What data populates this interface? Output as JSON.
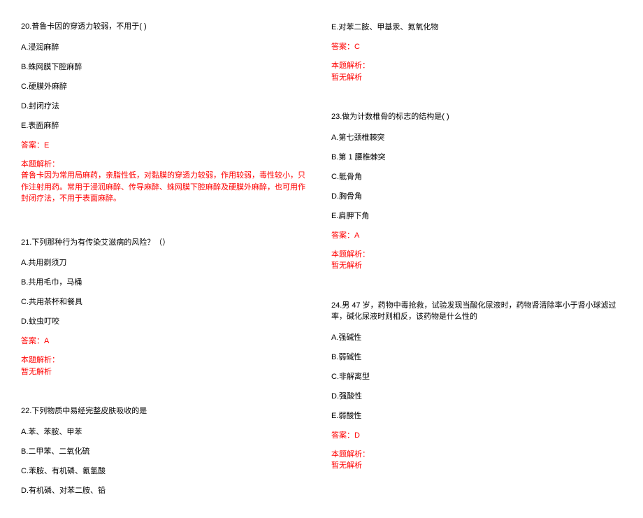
{
  "left": {
    "q20": {
      "title": "20.普鲁卡因的穿透力较弱，不用于( )",
      "opts": [
        "A.浸润麻醉",
        "B.蛛网膜下腔麻醉",
        "C.硬膜外麻醉",
        "D.封闭疗法",
        "E.表面麻醉"
      ],
      "answer": "答案：E",
      "exp_label": "本题解析：",
      "exp_text": "普鲁卡因为常用局麻药，亲脂性低，对黏膜的穿透力较弱，作用较弱，毒性较小，只作注射用药。常用于浸润麻醉、传导麻醉、蛛网膜下腔麻醉及硬膜外麻醉，也可用作封闭疗法，不用于表面麻醉。"
    },
    "q21": {
      "title": "21.下列那种行为有传染艾滋病的风险？（）",
      "opts": [
        "A.共用剃须刀",
        "B.共用毛巾，马桶",
        "C.共用茶杯和餐具",
        "D.蚊虫叮咬"
      ],
      "answer": "答案：A",
      "exp_label": "本题解析：",
      "exp_text": "暂无解析"
    },
    "q22": {
      "title": "22.下列物质中易经完整皮肤吸收的是",
      "opts": [
        "A.苯、苯胺、甲苯",
        "B.二甲苯、二氧化硫",
        "C.苯胺、有机磷、氰氢酸",
        "D.有机磷、对苯二胺、铅"
      ]
    }
  },
  "right": {
    "q22e": {
      "opt_e": "E.对苯二胺、甲基汞、氮氧化物",
      "answer": "答案：C",
      "exp_label": "本题解析：",
      "exp_text": "暂无解析"
    },
    "q23": {
      "title": "23.做为计数椎骨的标志的结构是(  )",
      "opts": [
        "A.第七颈椎棘突",
        "B.第 1 腰椎棘突",
        "C.骶骨角",
        "D.胸骨角",
        "E.肩胛下角"
      ],
      "answer": "答案：A",
      "exp_label": "本题解析：",
      "exp_text": "暂无解析"
    },
    "q24": {
      "title": "24.男 47 岁，药物中毒抢救，试验发现当酸化尿液时，药物肾清除率小于肾小球滤过率，碱化尿液时则相反，该药物是什么性的",
      "opts": [
        "A.强碱性",
        "B.弱碱性",
        "C.非解离型",
        "D.强酸性",
        "E.弱酸性"
      ],
      "answer": "答案：D",
      "exp_label": "本题解析：",
      "exp_text": "暂无解析"
    }
  }
}
